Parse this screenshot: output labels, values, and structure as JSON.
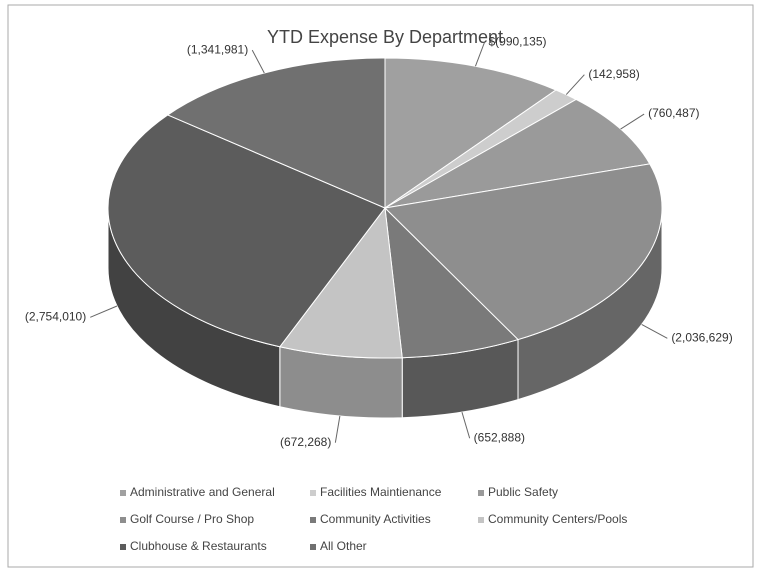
{
  "chart_data": {
    "type": "pie3d",
    "title": "YTD Expense By Department",
    "categories": [
      "Administrative and General",
      "Facilities Maintienance",
      "Public Safety",
      "Golf Course / Pro Shop",
      "Community Activities",
      "Community Centers/Pools",
      "Clubhouse & Restaurants",
      "All Other"
    ],
    "values": [
      -990135,
      -142958,
      -760487,
      -2036629,
      -652888,
      -672268,
      -2754010,
      -1341981
    ],
    "value_labels": [
      "$(990,135)",
      "(142,958)",
      "(760,487)",
      "(2,036,629)",
      "(652,888)",
      "(672,268)",
      "(2,754,010)",
      "(1,341,981)"
    ],
    "colors": [
      "#a0a0a0",
      "#cdcdcd",
      "#9a9a9a",
      "#8e8e8e",
      "#7a7a7a",
      "#c4c4c4",
      "#5c5c5c",
      "#707070"
    ],
    "legend": "bottom"
  }
}
